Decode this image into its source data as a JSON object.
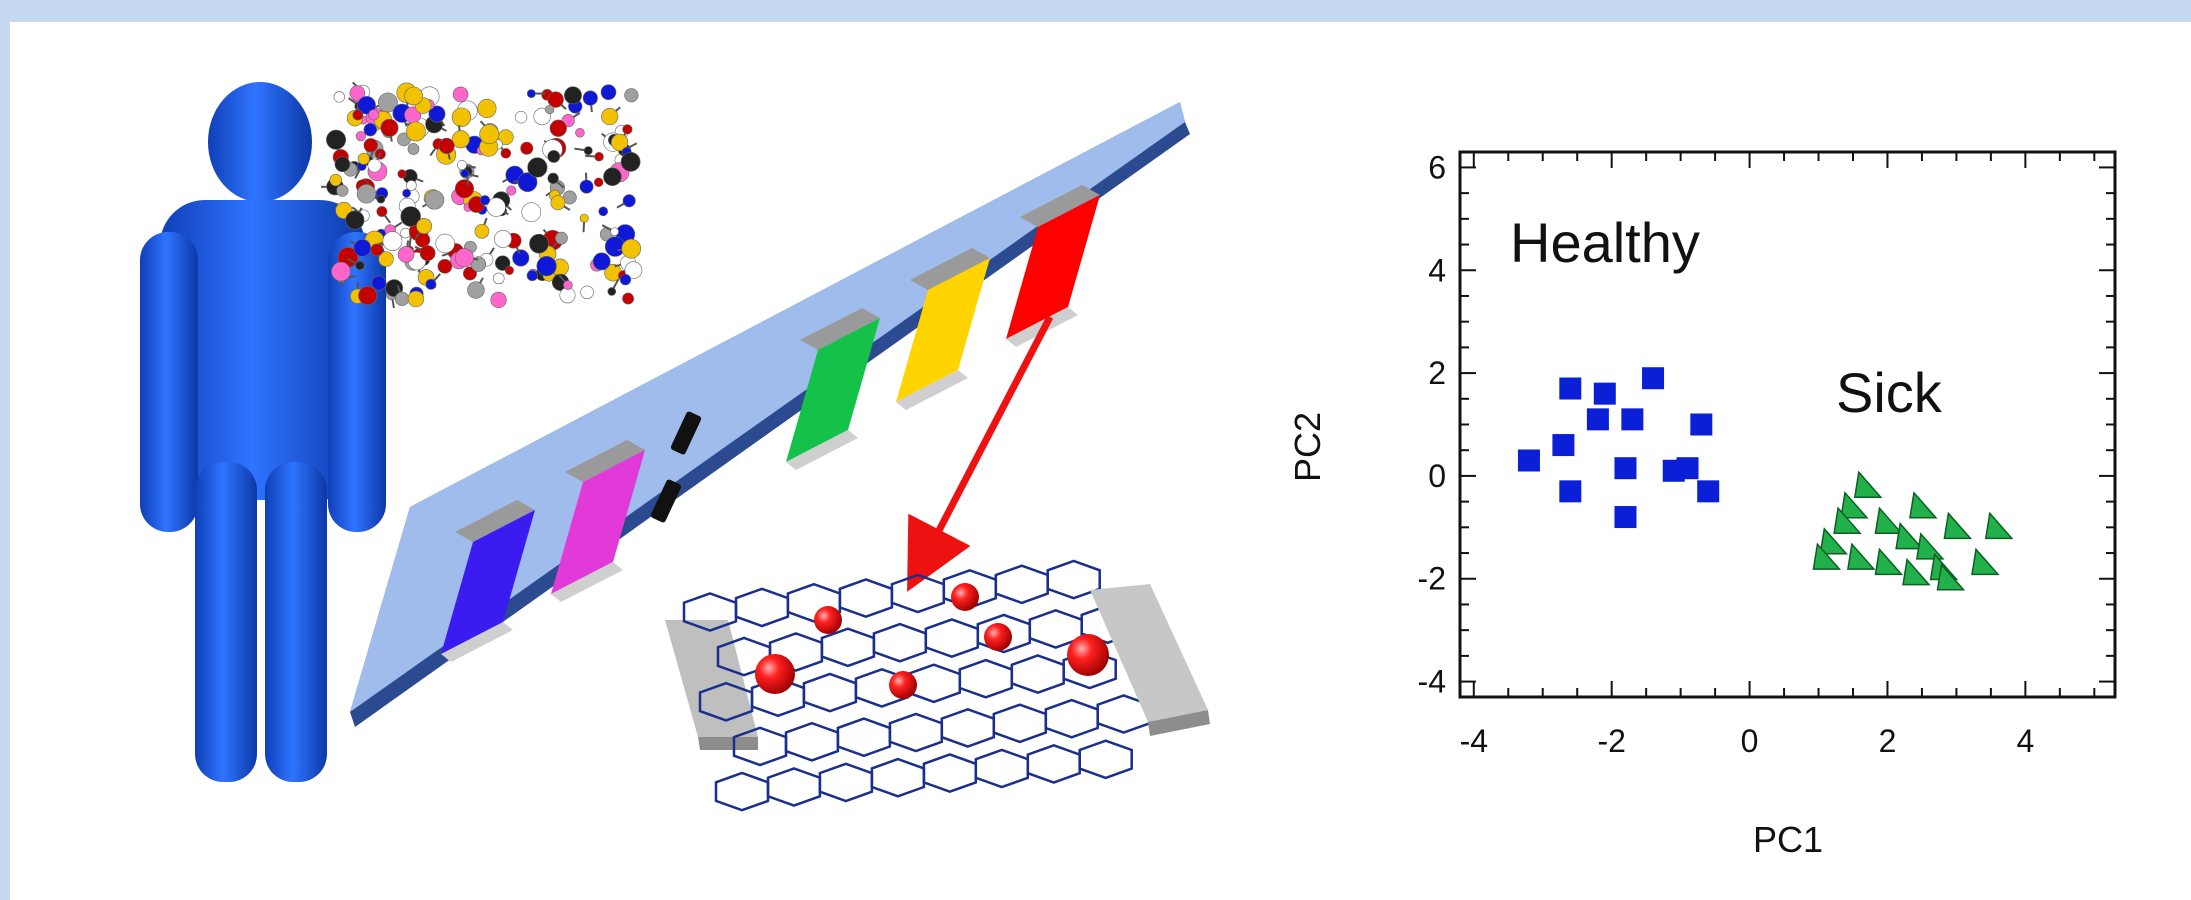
{
  "chart_data": {
    "type": "scatter",
    "title": "",
    "xlabel": "PC1",
    "ylabel": "PC2",
    "xlim": [
      -4.2,
      5.3
    ],
    "ylim": [
      -4.3,
      6.3
    ],
    "xticks": [
      -4,
      -2,
      0,
      2,
      4
    ],
    "yticks": [
      -4,
      -2,
      0,
      2,
      4,
      6
    ],
    "grid": false,
    "annotations": [
      {
        "text": "Healthy",
        "color": "#1f2a8c"
      },
      {
        "text": "Sick",
        "color": "#22b04b"
      }
    ],
    "series": [
      {
        "name": "Healthy",
        "marker": "square",
        "color": "#0a1fd6",
        "points": [
          [
            -2.6,
            1.7
          ],
          [
            -2.1,
            1.6
          ],
          [
            -1.4,
            1.9
          ],
          [
            -2.2,
            1.1
          ],
          [
            -1.7,
            1.1
          ],
          [
            -0.7,
            1.0
          ],
          [
            -2.7,
            0.6
          ],
          [
            -3.2,
            0.3
          ],
          [
            -1.8,
            0.15
          ],
          [
            -1.1,
            0.1
          ],
          [
            -0.9,
            0.15
          ],
          [
            -2.6,
            -0.3
          ],
          [
            -0.6,
            -0.3
          ],
          [
            -1.8,
            -0.8
          ]
        ]
      },
      {
        "name": "Sick",
        "marker": "triangle",
        "color": "#22b04b",
        "points": [
          [
            1.7,
            -0.2
          ],
          [
            2.5,
            -0.6
          ],
          [
            1.5,
            -0.6
          ],
          [
            2.0,
            -0.9
          ],
          [
            1.4,
            -0.9
          ],
          [
            3.0,
            -1.0
          ],
          [
            3.6,
            -1.0
          ],
          [
            2.3,
            -1.2
          ],
          [
            1.2,
            -1.3
          ],
          [
            2.6,
            -1.4
          ],
          [
            1.1,
            -1.6
          ],
          [
            1.6,
            -1.6
          ],
          [
            2.0,
            -1.7
          ],
          [
            2.4,
            -1.9
          ],
          [
            2.8,
            -1.8
          ],
          [
            3.4,
            -1.7
          ],
          [
            2.9,
            -2.0
          ]
        ]
      }
    ]
  },
  "diagram": {
    "sensor_colors": [
      "#3a1bf0",
      "#e23ad8",
      "#14c24a",
      "#ffd400",
      "#ff0000"
    ],
    "human_color": "#1f5de0",
    "arrow_color": "#ee1111",
    "nanoparticle_color": "#e01010",
    "mesh_color": "#1a2f8c"
  }
}
